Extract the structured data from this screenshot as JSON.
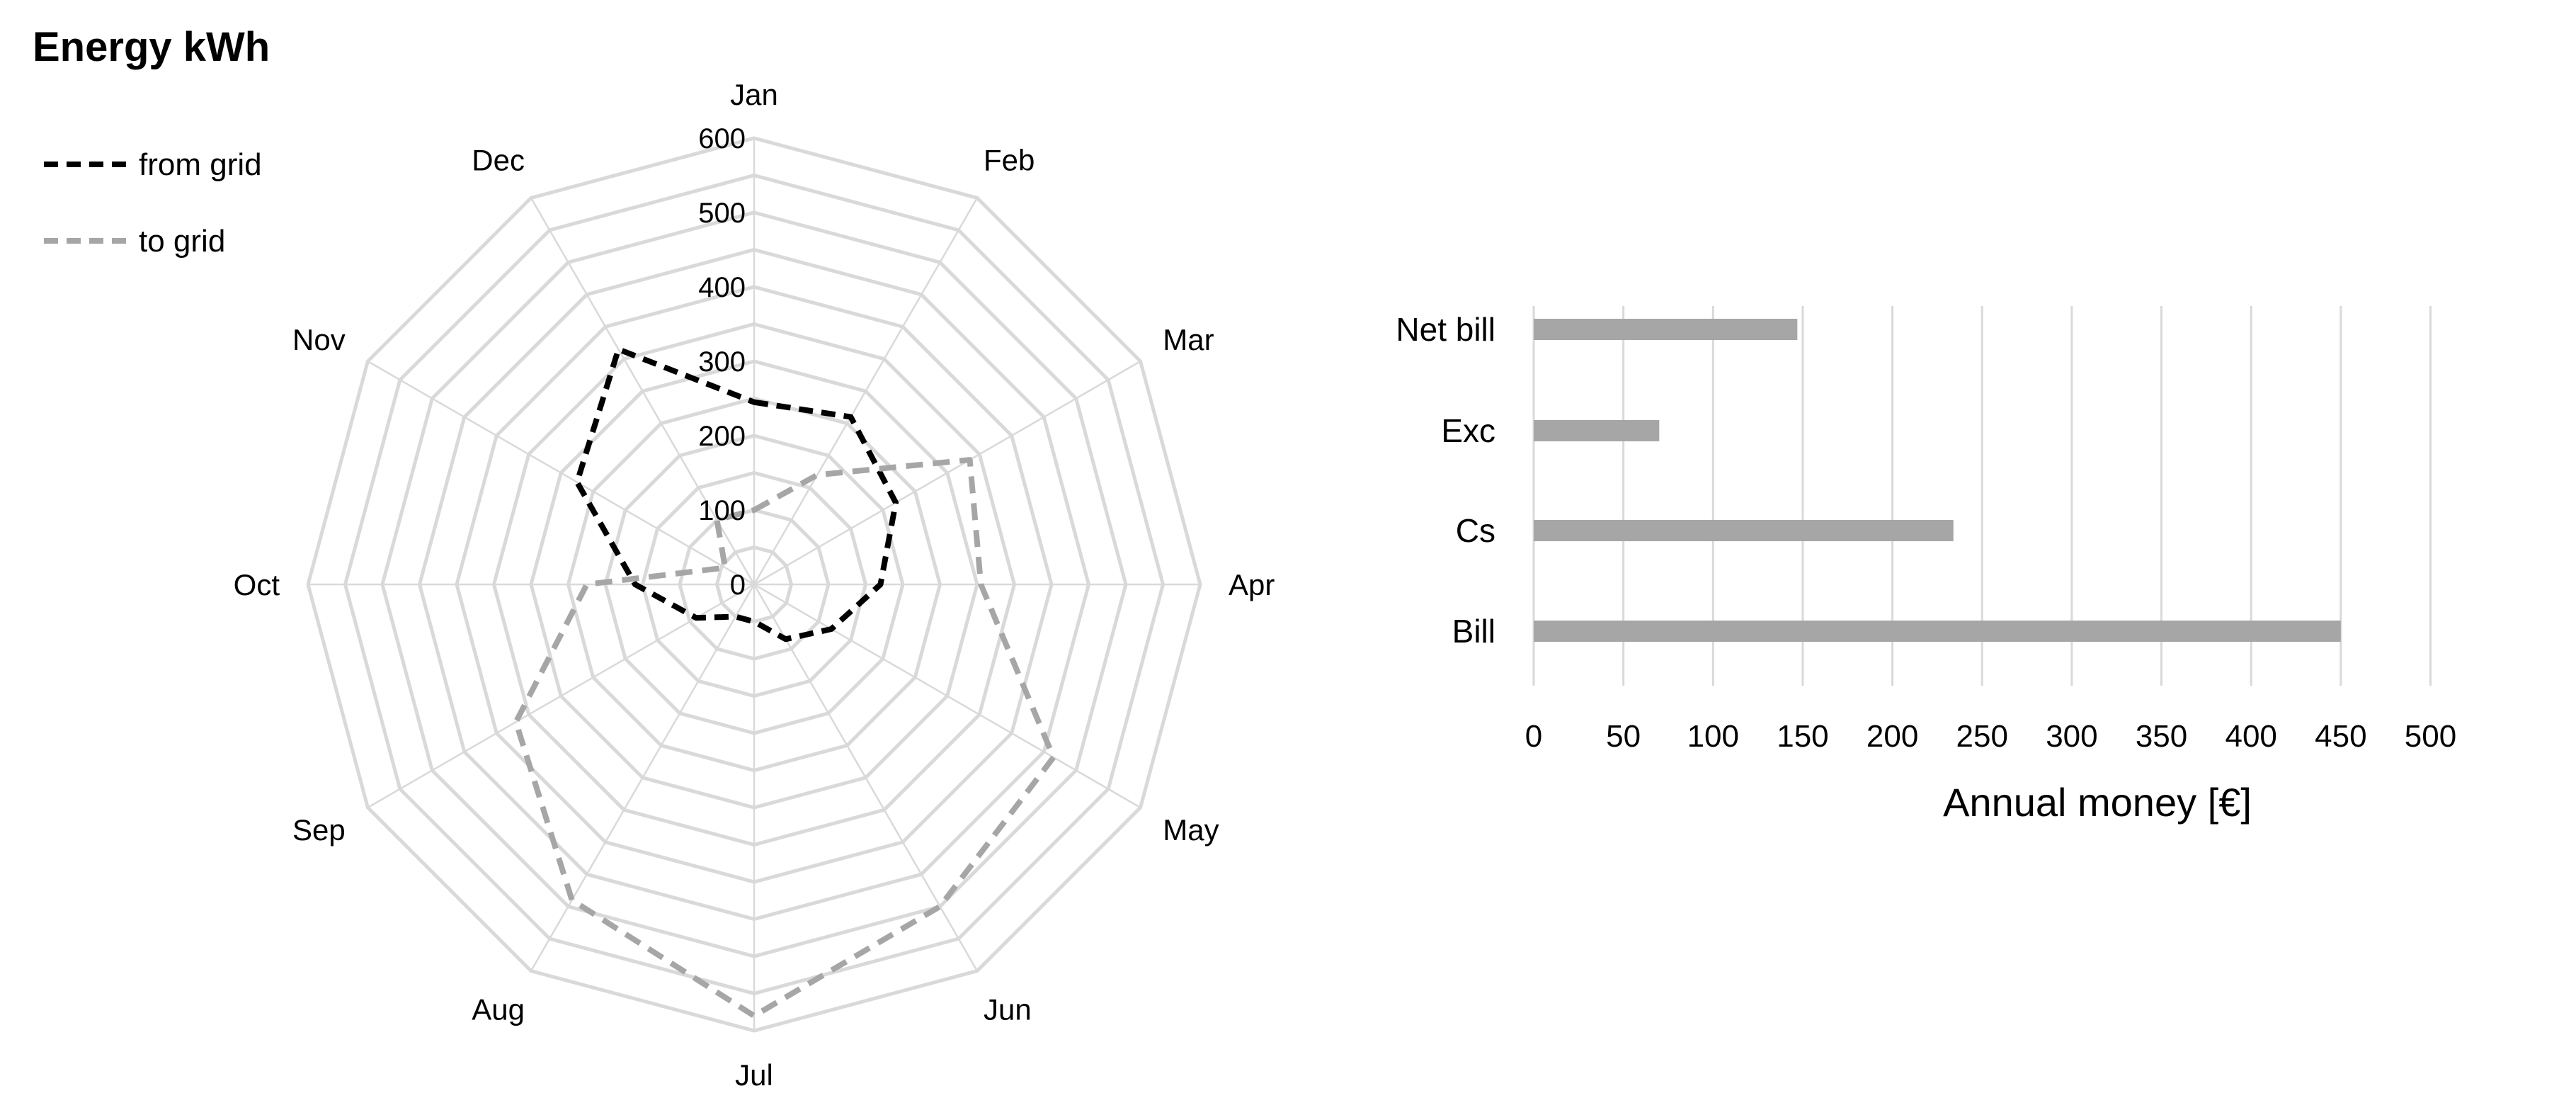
{
  "chart_data": [
    {
      "type": "radar",
      "title": "Energy kWh",
      "categories": [
        "Jan",
        "Feb",
        "Mar",
        "Apr",
        "May",
        "Jun",
        "Jul",
        "Aug",
        "Sep",
        "Oct",
        "Nov",
        "Dec"
      ],
      "rlim": [
        0,
        600
      ],
      "ticks": [
        0,
        100,
        200,
        300,
        400,
        500,
        600
      ],
      "grid": true,
      "legend": "top-left",
      "series": [
        {
          "name": "from grid",
          "color": "#000000",
          "style": "dashed",
          "values": [
            245,
            260,
            220,
            170,
            120,
            85,
            50,
            50,
            90,
            160,
            275,
            365
          ]
        },
        {
          "name": "to grid",
          "color": "#a6a6a6",
          "style": "dashed",
          "values": [
            100,
            170,
            335,
            305,
            465,
            500,
            580,
            490,
            370,
            225,
            45,
            100
          ]
        }
      ]
    },
    {
      "type": "bar",
      "orientation": "horizontal",
      "categories": [
        "Net bill",
        "Exc",
        "Cs",
        "Bill"
      ],
      "values": [
        147,
        70,
        234,
        450
      ],
      "color": "#a6a6a6",
      "xlabel": "Annual money [€]",
      "xlim": [
        0,
        500
      ],
      "ticks": [
        0,
        50,
        100,
        150,
        200,
        250,
        300,
        350,
        400,
        450,
        500
      ],
      "grid": true
    }
  ]
}
